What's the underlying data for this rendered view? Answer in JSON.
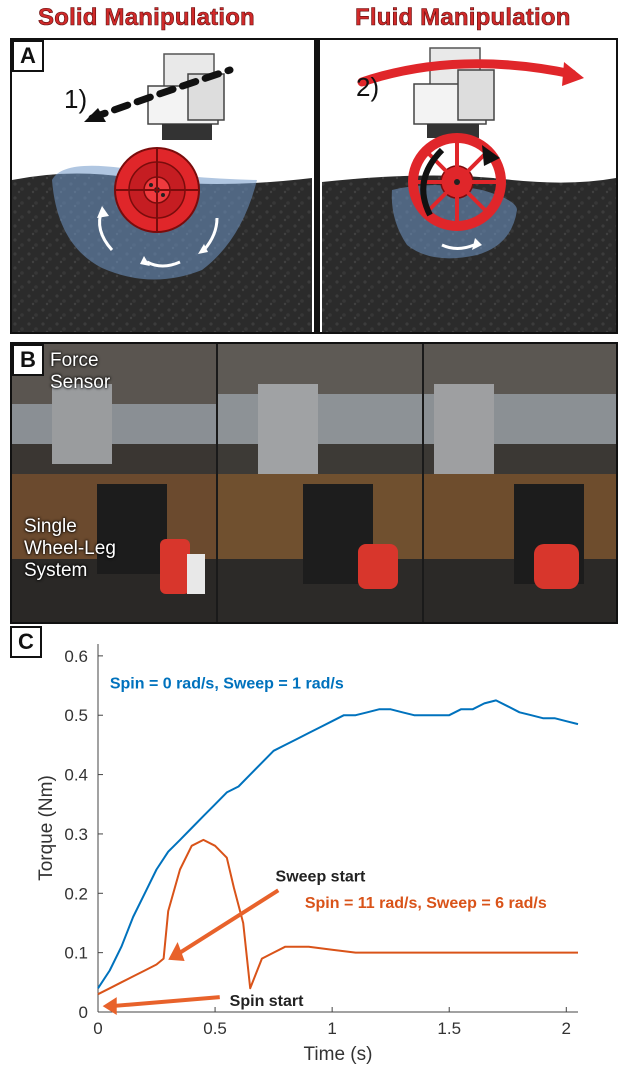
{
  "headings": {
    "solid": "Solid Manipulation",
    "fluid": "Fluid Manipulation"
  },
  "panel_a": {
    "letter": "A",
    "step1": "1)",
    "step2": "2)"
  },
  "panel_b": {
    "letter": "B",
    "label_sensor": "Force Sensor",
    "label_system": "Single Wheel-Leg System"
  },
  "panel_c": {
    "letter": "C"
  },
  "colors": {
    "heading_red": "#d12a2a",
    "wheel_red": "#e0262a",
    "sand": "#2b2b2b",
    "flow_blue": "#6f97c9",
    "series_blue": "#0072bd",
    "series_orange": "#d95319",
    "arrow_orange": "#e8622b"
  },
  "chart_data": {
    "type": "line",
    "xlabel": "Time (s)",
    "ylabel": "Torque (Nm)",
    "xlim": [
      0,
      2.05
    ],
    "ylim": [
      0,
      0.62
    ],
    "xticks": [
      0,
      0.5,
      1,
      1.5,
      2
    ],
    "xtick_labels": [
      "0",
      "0.5",
      "1",
      "1.5",
      "2"
    ],
    "yticks": [
      0,
      0.1,
      0.2,
      0.3,
      0.4,
      0.5,
      0.6
    ],
    "ytick_labels": [
      "0",
      "0.1",
      "0.2",
      "0.3",
      "0.4",
      "0.5",
      "0.6"
    ],
    "grid": false,
    "series": [
      {
        "name": "Spin = 0 rad/s, Sweep = 1 rad/s",
        "color": "#0072bd",
        "x": [
          0,
          0.05,
          0.1,
          0.15,
          0.2,
          0.25,
          0.3,
          0.35,
          0.4,
          0.45,
          0.5,
          0.55,
          0.6,
          0.65,
          0.7,
          0.75,
          0.8,
          0.85,
          0.9,
          0.95,
          1.0,
          1.05,
          1.1,
          1.15,
          1.2,
          1.25,
          1.3,
          1.35,
          1.4,
          1.45,
          1.5,
          1.55,
          1.6,
          1.65,
          1.7,
          1.75,
          1.8,
          1.85,
          1.9,
          1.95,
          2.0,
          2.05
        ],
        "y": [
          0.04,
          0.07,
          0.11,
          0.16,
          0.2,
          0.24,
          0.27,
          0.29,
          0.31,
          0.33,
          0.35,
          0.37,
          0.38,
          0.4,
          0.42,
          0.44,
          0.45,
          0.46,
          0.47,
          0.48,
          0.49,
          0.5,
          0.5,
          0.505,
          0.51,
          0.51,
          0.505,
          0.5,
          0.5,
          0.5,
          0.5,
          0.51,
          0.51,
          0.52,
          0.525,
          0.515,
          0.505,
          0.5,
          0.495,
          0.495,
          0.49,
          0.485
        ]
      },
      {
        "name": "Spin = 11 rad/s, Sweep = 6 rad/s",
        "color": "#d95319",
        "x": [
          0,
          0.05,
          0.1,
          0.15,
          0.2,
          0.25,
          0.28,
          0.3,
          0.35,
          0.4,
          0.45,
          0.5,
          0.55,
          0.58,
          0.62,
          0.65,
          0.7,
          0.75,
          0.8,
          0.9,
          1.0,
          1.1,
          1.2,
          1.3,
          1.4,
          1.5,
          1.6,
          1.7,
          1.8,
          1.9,
          2.0,
          2.05
        ],
        "y": [
          0.03,
          0.04,
          0.05,
          0.06,
          0.07,
          0.08,
          0.09,
          0.17,
          0.24,
          0.28,
          0.29,
          0.28,
          0.26,
          0.21,
          0.15,
          0.04,
          0.09,
          0.1,
          0.11,
          0.11,
          0.105,
          0.1,
          0.1,
          0.1,
          0.1,
          0.1,
          0.1,
          0.1,
          0.1,
          0.1,
          0.1,
          0.1
        ]
      }
    ],
    "annotations": [
      {
        "text": "Spin = 0 rad/s, Sweep = 1 rad/s",
        "color": "#0072bd"
      },
      {
        "text": "Spin = 11 rad/s, Sweep = 6 rad/s",
        "color": "#d95319"
      },
      {
        "text": "Sweep start",
        "color": "#222222"
      },
      {
        "text": "Spin start",
        "color": "#222222"
      }
    ]
  }
}
